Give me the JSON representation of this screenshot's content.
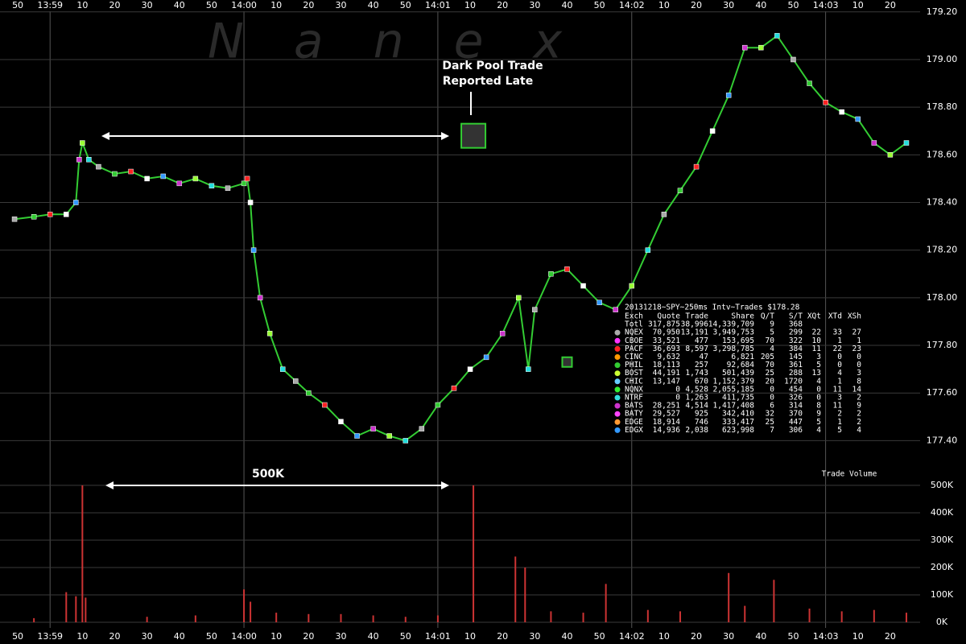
{
  "chart_data": [
    {
      "type": "scatter",
      "watermark": "Nanex",
      "xlim": [
        "13:58:45",
        "14:03:28"
      ],
      "xticks": [
        {
          "value": "13:58:50",
          "label": "50"
        },
        {
          "value": "13:59:00",
          "label": "13:59"
        },
        {
          "value": "13:59:10",
          "label": "10"
        },
        {
          "value": "13:59:20",
          "label": "20"
        },
        {
          "value": "13:59:30",
          "label": "30"
        },
        {
          "value": "13:59:40",
          "label": "40"
        },
        {
          "value": "13:59:50",
          "label": "50"
        },
        {
          "value": "14:00:00",
          "label": "14:00"
        },
        {
          "value": "14:00:10",
          "label": "10"
        },
        {
          "value": "14:00:20",
          "label": "20"
        },
        {
          "value": "14:00:30",
          "label": "30"
        },
        {
          "value": "14:00:40",
          "label": "40"
        },
        {
          "value": "14:00:50",
          "label": "50"
        },
        {
          "value": "14:01:00",
          "label": "14:01"
        },
        {
          "value": "14:01:10",
          "label": "10"
        },
        {
          "value": "14:01:20",
          "label": "20"
        },
        {
          "value": "14:01:30",
          "label": "30"
        },
        {
          "value": "14:01:40",
          "label": "40"
        },
        {
          "value": "14:01:50",
          "label": "50"
        },
        {
          "value": "14:02:00",
          "label": "14:02"
        },
        {
          "value": "14:02:10",
          "label": "10"
        },
        {
          "value": "14:02:20",
          "label": "20"
        },
        {
          "value": "14:02:30",
          "label": "30"
        },
        {
          "value": "14:02:40",
          "label": "40"
        },
        {
          "value": "14:02:50",
          "label": "50"
        },
        {
          "value": "14:03:00",
          "label": "14:03"
        },
        {
          "value": "14:03:10",
          "label": "10"
        },
        {
          "value": "14:03:20",
          "label": "20"
        }
      ],
      "ylim": [
        177.3,
        179.25
      ],
      "yticks": [
        {
          "value": 177.4,
          "label": "177.40"
        },
        {
          "value": 177.6,
          "label": "177.60"
        },
        {
          "value": 177.8,
          "label": "177.80"
        },
        {
          "value": 178.0,
          "label": "178.00"
        },
        {
          "value": 178.2,
          "label": "178.20"
        },
        {
          "value": 178.4,
          "label": "178.40"
        },
        {
          "value": 178.6,
          "label": "178.60"
        },
        {
          "value": 178.8,
          "label": "178.80"
        },
        {
          "value": 179.0,
          "label": "179.00"
        },
        {
          "value": 179.2,
          "label": "179.20"
        }
      ],
      "grid": true,
      "marker_colors": [
        "#aaaaaa",
        "#33cc33",
        "#ff2222",
        "#ffffff",
        "#3399ff",
        "#cc33cc",
        "#99ff33",
        "#22dddd"
      ],
      "series": [
        {
          "name": "Trades",
          "color": "#33cc33",
          "x": [
            "13:58:49",
            "13:58:55",
            "13:59:00",
            "13:59:05",
            "13:59:08",
            "13:59:09",
            "13:59:10",
            "13:59:12",
            "13:59:15",
            "13:59:20",
            "13:59:25",
            "13:59:30",
            "13:59:35",
            "13:59:40",
            "13:59:45",
            "13:59:50",
            "13:59:55",
            "14:00:00",
            "14:00:01",
            "14:00:02",
            "14:00:03",
            "14:00:05",
            "14:00:08",
            "14:00:12",
            "14:00:16",
            "14:00:20",
            "14:00:25",
            "14:00:30",
            "14:00:35",
            "14:00:40",
            "14:00:45",
            "14:00:50",
            "14:00:55",
            "14:01:00",
            "14:01:05",
            "14:01:10",
            "14:01:15",
            "14:01:20",
            "14:01:25",
            "14:01:28",
            "14:01:30",
            "14:01:35",
            "14:01:40",
            "14:01:45",
            "14:01:50",
            "14:01:55",
            "14:02:00",
            "14:02:05",
            "14:02:10",
            "14:02:15",
            "14:02:20",
            "14:02:25",
            "14:02:30",
            "14:02:35",
            "14:02:40",
            "14:02:45",
            "14:02:50",
            "14:02:55",
            "14:03:00",
            "14:03:05",
            "14:03:10",
            "14:03:15",
            "14:03:20",
            "14:03:25"
          ],
          "values": [
            178.33,
            178.34,
            178.35,
            178.35,
            178.4,
            178.58,
            178.65,
            178.58,
            178.55,
            178.52,
            178.53,
            178.5,
            178.51,
            178.48,
            178.5,
            178.47,
            178.46,
            178.48,
            178.5,
            178.4,
            178.2,
            178.0,
            177.85,
            177.7,
            177.65,
            177.6,
            177.55,
            177.48,
            177.42,
            177.45,
            177.42,
            177.4,
            177.45,
            177.55,
            177.62,
            177.7,
            177.75,
            177.85,
            178.0,
            177.7,
            177.95,
            178.1,
            178.12,
            178.05,
            177.98,
            177.95,
            178.05,
            178.2,
            178.35,
            178.45,
            178.55,
            178.7,
            178.85,
            179.05,
            179.05,
            179.1,
            179.0,
            178.9,
            178.82,
            178.78,
            178.75,
            178.65,
            178.6,
            178.65
          ]
        }
      ],
      "late_trades": {
        "color": "#33cc33",
        "x": [
          "14:01:11",
          "14:01:40"
        ],
        "values": [
          178.68,
          177.73
        ]
      },
      "annotation": [
        "Dark Pool Trade",
        "Reported Late"
      ],
      "table": {
        "title": "20131218~SPY~250ms Intv~Trades $178.28",
        "header": [
          "Exch",
          "Quote",
          "Trade",
          "Share",
          "Q/T",
          "S/T",
          "XQt",
          "XTd",
          "XSh"
        ],
        "rows": [
          {
            "cells": [
              "Totl",
              "317,875",
              "38,996",
              "14,339,709",
              "9",
              "368"
            ]
          },
          {
            "color": "#aaaaaa",
            "cells": [
              "NQEX",
              "70,950",
              "13,191",
              "3,949,753",
              "5",
              "299",
              "22",
              "33",
              "27"
            ]
          },
          {
            "color": "#ff33ff",
            "cells": [
              "CBOE",
              "33,521",
              "477",
              "153,695",
              "70",
              "322",
              "10",
              "1",
              "1"
            ]
          },
          {
            "color": "#ff2222",
            "cells": [
              "PACF",
              "36,693",
              "8,597",
              "3,298,785",
              "4",
              "384",
              "11",
              "22",
              "23"
            ]
          },
          {
            "color": "#ff9900",
            "cells": [
              "CINC",
              "9,632",
              "47",
              "6,821",
              "205",
              "145",
              "3",
              "0",
              "0"
            ]
          },
          {
            "color": "#33cc33",
            "cells": [
              "PHIL",
              "18,113",
              "257",
              "92,684",
              "70",
              "361",
              "5",
              "0",
              "0"
            ]
          },
          {
            "color": "#ccff33",
            "cells": [
              "BOST",
              "44,191",
              "1,743",
              "501,439",
              "25",
              "288",
              "13",
              "4",
              "3"
            ]
          },
          {
            "color": "#66ccff",
            "cells": [
              "CHIC",
              "13,147",
              "670",
              "1,152,379",
              "20",
              "1720",
              "4",
              "1",
              "8"
            ]
          },
          {
            "color": "#33ee33",
            "cells": [
              "NQNX",
              "0",
              "4,528",
              "2,055,185",
              "0",
              "454",
              "0",
              "11",
              "14"
            ]
          },
          {
            "color": "#33dddd",
            "cells": [
              "NTRF",
              "0",
              "1,263",
              "411,735",
              "0",
              "326",
              "0",
              "3",
              "2"
            ]
          },
          {
            "color": "#cc33cc",
            "cells": [
              "BATS",
              "28,251",
              "4,514",
              "1,417,408",
              "6",
              "314",
              "8",
              "11",
              "9"
            ]
          },
          {
            "color": "#ff44ff",
            "cells": [
              "BATY",
              "29,527",
              "925",
              "342,410",
              "32",
              "370",
              "9",
              "2",
              "2"
            ]
          },
          {
            "color": "#ff9933",
            "cells": [
              "EDGE",
              "18,914",
              "746",
              "333,417",
              "25",
              "447",
              "5",
              "1",
              "2"
            ]
          },
          {
            "color": "#3399ff",
            "cells": [
              "EDGX",
              "14,936",
              "2,038",
              "623,998",
              "7",
              "306",
              "4",
              "5",
              "4"
            ]
          }
        ]
      }
    },
    {
      "type": "bar",
      "title": "Trade Volume",
      "annotation": "500K",
      "ylim": [
        0,
        538000
      ],
      "yticks": [
        {
          "value": 0,
          "label": "0K"
        },
        {
          "value": 100000,
          "label": "100K"
        },
        {
          "value": 200000,
          "label": "200K"
        },
        {
          "value": 300000,
          "label": "300K"
        },
        {
          "value": 400000,
          "label": "400K"
        },
        {
          "value": 500000,
          "label": "500K"
        }
      ],
      "grid": true,
      "series": [
        {
          "name": "Trade Volume",
          "color": "#cc3333",
          "x": [
            "13:58:55",
            "13:59:05",
            "13:59:08",
            "13:59:10",
            "13:59:11",
            "13:59:30",
            "13:59:45",
            "14:00:00",
            "14:00:02",
            "14:00:10",
            "14:00:20",
            "14:00:30",
            "14:00:40",
            "14:00:50",
            "14:01:00",
            "14:01:11",
            "14:01:24",
            "14:01:27",
            "14:01:35",
            "14:01:45",
            "14:01:52",
            "14:02:05",
            "14:02:15",
            "14:02:30",
            "14:02:35",
            "14:02:44",
            "14:02:55",
            "14:03:05",
            "14:03:15",
            "14:03:25"
          ],
          "values": [
            15000,
            110000,
            95000,
            500000,
            90000,
            20000,
            25000,
            120000,
            75000,
            35000,
            30000,
            30000,
            25000,
            20000,
            25000,
            500000,
            240000,
            200000,
            40000,
            35000,
            140000,
            45000,
            40000,
            180000,
            60000,
            155000,
            50000,
            40000,
            45000,
            35000
          ]
        }
      ]
    }
  ]
}
